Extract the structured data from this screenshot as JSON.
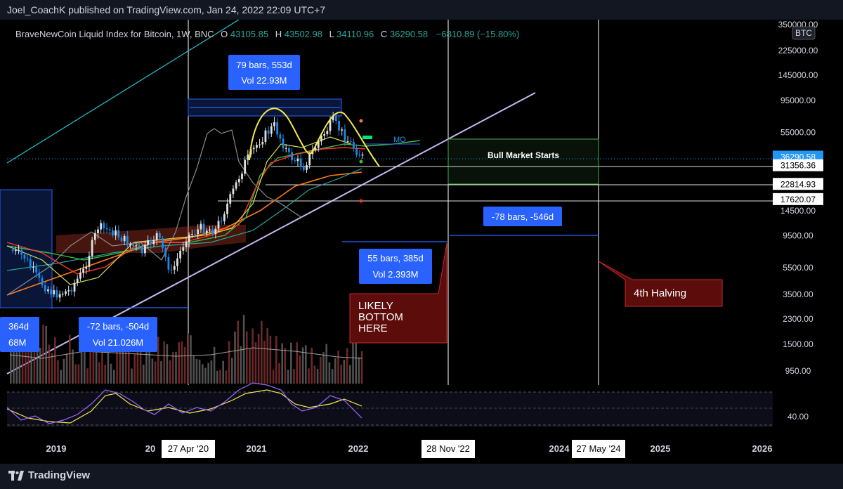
{
  "header": {
    "publisher": "Joel_CoachK published on TradingView.com, Jan 24, 2022 22:09 UTC+7"
  },
  "legend": {
    "symbol": "BraveNewCoin Liquid Index for Bitcoin, 1W, BNC",
    "open_label": "O",
    "open": "43105.85",
    "high_label": "H",
    "high": "43502.98",
    "low_label": "L",
    "low": "34110.96",
    "close_label": "C",
    "close": "36290.58",
    "change": "−6810.89 (−15.80%)"
  },
  "footer": {
    "brand": "TradingView"
  },
  "colors": {
    "background": "#000000",
    "panel": "#131722",
    "text": "#d1d4dc",
    "label_blue": "#2962ff",
    "red_box": "#5d0c0c",
    "price_tag": "#2196f3",
    "yellow": "#f5e94a",
    "teal": "#26c6da",
    "lavender": "#c9b6f2"
  },
  "chart_data": {
    "type": "line",
    "title": "BraveNewCoin Liquid Index for Bitcoin, 1W, BNC",
    "y_scale": "log",
    "y_ticks": [
      "350000.00",
      "225000.00",
      "145000.00",
      "95000.00",
      "55000.00",
      "36290.58",
      "31356.36",
      "22814.93",
      "17620.07",
      "14500.00",
      "9500.00",
      "5500.00",
      "3500.00",
      "2300.00",
      "1500.00",
      "950.00"
    ],
    "y_unit_badge": "BTC",
    "x_ticks": [
      "2019",
      "20",
      "2021",
      "2022",
      "2024",
      "2025",
      "2026"
    ],
    "x_date_labels": [
      "27 Apr '20",
      "28 Nov '22",
      "27 May '24"
    ],
    "last_price": 36290.58,
    "horizontal_levels": [
      31356.36,
      22814.93,
      17620.07
    ],
    "oscillator_tick": "40.00",
    "price_series": [
      {
        "x": "2018-07",
        "y": 7500
      },
      {
        "x": "2018-09",
        "y": 6600
      },
      {
        "x": "2018-11",
        "y": 4400
      },
      {
        "x": "2018-12",
        "y": 3500
      },
      {
        "x": "2019-02",
        "y": 3700
      },
      {
        "x": "2019-04",
        "y": 5200
      },
      {
        "x": "2019-06",
        "y": 11000
      },
      {
        "x": "2019-08",
        "y": 10200
      },
      {
        "x": "2019-10",
        "y": 8500
      },
      {
        "x": "2019-12",
        "y": 7200
      },
      {
        "x": "2020-02",
        "y": 9700
      },
      {
        "x": "2020-03",
        "y": 5000
      },
      {
        "x": "2020-05",
        "y": 9300
      },
      {
        "x": "2020-07",
        "y": 10800
      },
      {
        "x": "2020-09",
        "y": 10500
      },
      {
        "x": "2020-11",
        "y": 18000
      },
      {
        "x": "2021-01",
        "y": 33000
      },
      {
        "x": "2021-02",
        "y": 48000
      },
      {
        "x": "2021-04",
        "y": 62000
      },
      {
        "x": "2021-05",
        "y": 37000
      },
      {
        "x": "2021-07",
        "y": 31000
      },
      {
        "x": "2021-09",
        "y": 47000
      },
      {
        "x": "2021-11",
        "y": 67000
      },
      {
        "x": "2021-12",
        "y": 48000
      },
      {
        "x": "2022-01",
        "y": 36290.58
      }
    ],
    "annotations": [
      {
        "text_lines": [
          "79 bars, 553d",
          "Vol 22.93M"
        ],
        "style": "blue"
      },
      {
        "text_lines": [
          "-72 bars, -504d",
          "Vol 21.026M"
        ],
        "style": "blue"
      },
      {
        "text_lines": [
          "364d",
          "68M"
        ],
        "style": "blue"
      },
      {
        "text_lines": [
          "55 bars, 385d",
          "Vol 2.393M"
        ],
        "style": "blue"
      },
      {
        "text_lines": [
          "-78 bars, -546d"
        ],
        "style": "blue"
      },
      {
        "text_lines": [
          "Bull Market Starts"
        ],
        "style": "plain"
      },
      {
        "text_lines": [
          "MO"
        ],
        "style": "plain"
      },
      {
        "text_lines": [
          "LIKELY",
          "BOTTOM",
          "HERE"
        ],
        "style": "red"
      },
      {
        "text_lines": [
          "4th Halving"
        ],
        "style": "red"
      }
    ]
  }
}
